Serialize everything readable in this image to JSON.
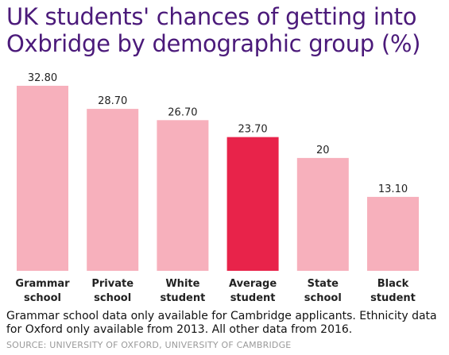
{
  "chart_data": {
    "type": "bar",
    "title": "UK students' chances of getting into Oxbridge by demographic group (%)",
    "categories": [
      [
        "Grammar",
        "school"
      ],
      [
        "Private",
        "school"
      ],
      [
        "White",
        "student"
      ],
      [
        "Average",
        "student"
      ],
      [
        "State",
        "school"
      ],
      [
        "Black",
        "student"
      ]
    ],
    "values": [
      32.8,
      28.7,
      26.7,
      23.7,
      20,
      13.1
    ],
    "value_labels": [
      "32.80",
      "28.70",
      "26.70",
      "23.70",
      "20",
      "13.10"
    ],
    "ylim": [
      0,
      32.8
    ],
    "highlight_index": 3,
    "colors": {
      "default": "#f7b0bc",
      "highlight": "#e8234a"
    },
    "grid": false,
    "legend": "none"
  },
  "footnote": "Grammar school data only available for Cambridge applicants. Ethnicity data for Oxford only available from 2013. All other data from 2016.",
  "source": "SOURCE: UNIVERSITY OF OXFORD, UNIVERSITY OF CAMBRIDGE"
}
